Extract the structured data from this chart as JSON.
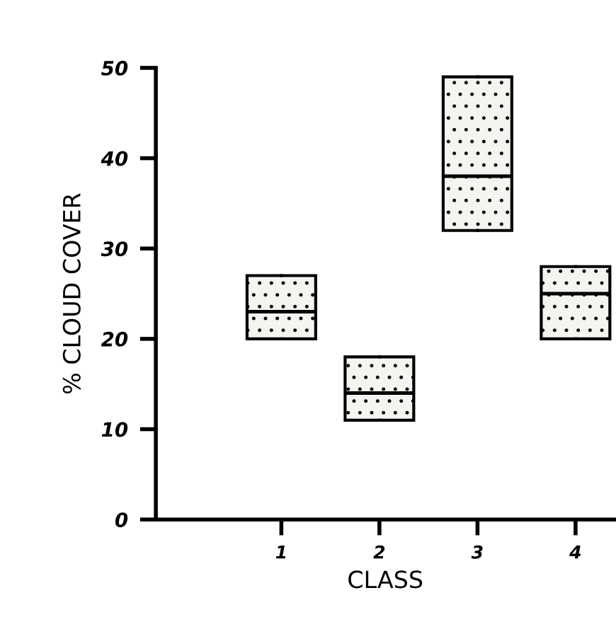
{
  "chart_data": {
    "type": "box",
    "xlabel": "CLASS",
    "ylabel": "% CLOUD COVER",
    "categories": [
      "1",
      "2",
      "3",
      "4"
    ],
    "boxes": [
      {
        "low": 20,
        "q1": 20,
        "median": 23,
        "q3": 27,
        "high": 27
      },
      {
        "low": 11,
        "q1": 11,
        "median": 14,
        "q3": 18,
        "high": 18
      },
      {
        "low": 32,
        "q1": 32,
        "median": 38,
        "q3": 49,
        "high": 49
      },
      {
        "low": 20,
        "q1": 20,
        "median": 25,
        "q3": 28,
        "high": 28
      }
    ],
    "ylim": [
      0,
      50
    ],
    "yticks": [
      0,
      10,
      20,
      30,
      40,
      50
    ],
    "grid": false
  }
}
